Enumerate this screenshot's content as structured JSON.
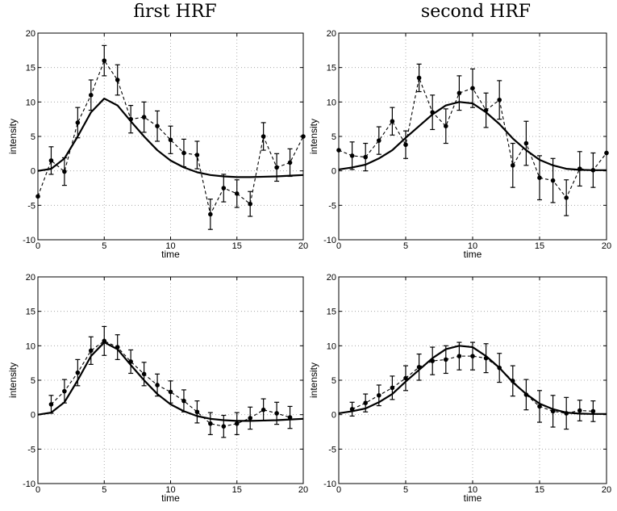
{
  "column_titles": [
    "first HRF",
    "second HRF"
  ],
  "chart_data": [
    {
      "type": "line",
      "xlabel": "time",
      "ylabel": "intensity",
      "xlim": [
        0,
        20
      ],
      "ylim": [
        -10,
        20
      ],
      "xticks": [
        0,
        5,
        10,
        15,
        20
      ],
      "yticks": [
        -10,
        -5,
        0,
        5,
        10,
        15,
        20
      ],
      "grid": true,
      "series": [
        {
          "style": "solid",
          "x": [
            0,
            1,
            2,
            3,
            4,
            5,
            6,
            7,
            8,
            9,
            10,
            11,
            12,
            13,
            14,
            15,
            16,
            17,
            18,
            19,
            20
          ],
          "y": [
            0,
            0.3,
            1.8,
            5,
            8.5,
            10.5,
            9.5,
            7.2,
            5,
            3,
            1.5,
            0.5,
            -0.2,
            -0.6,
            -0.8,
            -0.9,
            -0.9,
            -0.85,
            -0.8,
            -0.7,
            -0.6
          ]
        },
        {
          "style": "dashed-markers",
          "x": [
            0,
            1,
            2,
            3,
            4,
            5,
            6,
            7,
            8,
            9,
            10,
            11,
            12,
            13,
            14,
            15,
            16,
            17,
            18,
            19,
            20
          ],
          "y": [
            -3.7,
            1.5,
            -0.1,
            7,
            11,
            16,
            13.2,
            7.5,
            7.8,
            6.5,
            4.5,
            2.6,
            2.3,
            -6.3,
            -2.5,
            -3.3,
            -4.8,
            5,
            0.5,
            1.2,
            5
          ],
          "err": [
            0,
            2,
            2,
            2.2,
            2.2,
            2.2,
            2.2,
            2,
            2.2,
            2.2,
            2,
            2,
            2,
            2.2,
            2,
            2,
            1.8,
            2,
            2,
            2,
            0
          ]
        }
      ]
    },
    {
      "type": "line",
      "xlabel": "time",
      "ylabel": "intensity",
      "xlim": [
        0,
        20
      ],
      "ylim": [
        -10,
        20
      ],
      "xticks": [
        0,
        5,
        10,
        15,
        20
      ],
      "yticks": [
        -10,
        -5,
        0,
        5,
        10,
        15,
        20
      ],
      "grid": true,
      "series": [
        {
          "style": "solid",
          "x": [
            0,
            1,
            2,
            3,
            4,
            5,
            6,
            7,
            8,
            9,
            10,
            11,
            12,
            13,
            14,
            15,
            16,
            17,
            18,
            19,
            20
          ],
          "y": [
            0.2,
            0.5,
            0.9,
            1.8,
            3,
            4.8,
            6.5,
            8.2,
            9.5,
            10,
            9.8,
            8.5,
            6.8,
            4.7,
            3,
            1.6,
            0.8,
            0.3,
            0.15,
            0.1,
            0.1
          ]
        },
        {
          "style": "dashed-markers",
          "x": [
            0,
            1,
            2,
            3,
            4,
            5,
            6,
            7,
            8,
            9,
            10,
            11,
            12,
            13,
            14,
            15,
            16,
            17,
            18,
            19,
            20
          ],
          "y": [
            3,
            2.2,
            2,
            4.4,
            7.2,
            3.8,
            13.5,
            8.5,
            6.5,
            11.3,
            12,
            8.8,
            10.3,
            0.8,
            4,
            -1,
            -1.4,
            -3.9,
            0.3,
            0.1,
            2.6
          ],
          "err": [
            0,
            2,
            2,
            2,
            2,
            2,
            2,
            2.5,
            2.5,
            2.5,
            2.8,
            2.5,
            2.8,
            3.2,
            3.2,
            3.2,
            3.2,
            2.6,
            2.5,
            2.5,
            0
          ]
        }
      ]
    },
    {
      "type": "line",
      "xlabel": "time",
      "ylabel": "intensity",
      "xlim": [
        0,
        20
      ],
      "ylim": [
        -10,
        20
      ],
      "xticks": [
        0,
        5,
        10,
        15,
        20
      ],
      "yticks": [
        -10,
        -5,
        0,
        5,
        10,
        15,
        20
      ],
      "grid": true,
      "series": [
        {
          "style": "solid",
          "x": [
            0,
            1,
            2,
            3,
            4,
            5,
            6,
            7,
            8,
            9,
            10,
            11,
            12,
            13,
            14,
            15,
            16,
            17,
            18,
            19,
            20
          ],
          "y": [
            0,
            0.3,
            1.8,
            5,
            8.5,
            10.5,
            9.5,
            7.2,
            5,
            3,
            1.5,
            0.5,
            -0.2,
            -0.6,
            -0.8,
            -0.9,
            -0.9,
            -0.85,
            -0.8,
            -0.7,
            -0.6
          ]
        },
        {
          "style": "dashed-markers",
          "x": [
            1,
            2,
            3,
            4,
            5,
            6,
            7,
            8,
            9,
            10,
            11,
            12,
            13,
            14,
            15,
            16,
            17,
            18,
            19
          ],
          "y": [
            1.5,
            3.4,
            6.1,
            9.3,
            10.7,
            9.8,
            7.7,
            5.9,
            4.3,
            3.3,
            2,
            0.4,
            -1.3,
            -1.7,
            -1.3,
            -0.5,
            0.7,
            0.2,
            -0.4
          ],
          "err": [
            1.3,
            1.7,
            1.9,
            2,
            2.1,
            1.8,
            1.7,
            1.7,
            1.6,
            1.6,
            1.6,
            1.6,
            1.6,
            1.6,
            1.6,
            1.6,
            1.6,
            1.6,
            1.6
          ]
        }
      ]
    },
    {
      "type": "line",
      "xlabel": "time",
      "ylabel": "intensity",
      "xlim": [
        0,
        20
      ],
      "ylim": [
        -10,
        20
      ],
      "xticks": [
        0,
        5,
        10,
        15,
        20
      ],
      "yticks": [
        -10,
        -5,
        0,
        5,
        10,
        15,
        20
      ],
      "grid": true,
      "series": [
        {
          "style": "solid",
          "x": [
            0,
            1,
            2,
            3,
            4,
            5,
            6,
            7,
            8,
            9,
            10,
            11,
            12,
            13,
            14,
            15,
            16,
            17,
            18,
            19,
            20
          ],
          "y": [
            0.2,
            0.5,
            0.9,
            1.8,
            3,
            4.8,
            6.5,
            8.2,
            9.5,
            10,
            9.8,
            8.5,
            6.8,
            4.7,
            3,
            1.6,
            0.8,
            0.3,
            0.15,
            0.1,
            0.1
          ]
        },
        {
          "style": "dashed-markers",
          "x": [
            1,
            2,
            3,
            4,
            5,
            6,
            7,
            8,
            9,
            10,
            11,
            12,
            13,
            14,
            15,
            16,
            17,
            18,
            19
          ],
          "y": [
            0.8,
            1.7,
            2.8,
            3.9,
            5.3,
            6.9,
            7.8,
            8,
            8.5,
            8.5,
            8.2,
            6.8,
            4.9,
            2.9,
            1.2,
            0.5,
            0.2,
            0.6,
            0.5
          ],
          "err": [
            1,
            1.3,
            1.5,
            1.7,
            1.8,
            1.9,
            2,
            2,
            2,
            2,
            2.1,
            2.1,
            2.2,
            2.2,
            2.3,
            2.3,
            2.3,
            1.5,
            1.5
          ]
        }
      ]
    }
  ]
}
